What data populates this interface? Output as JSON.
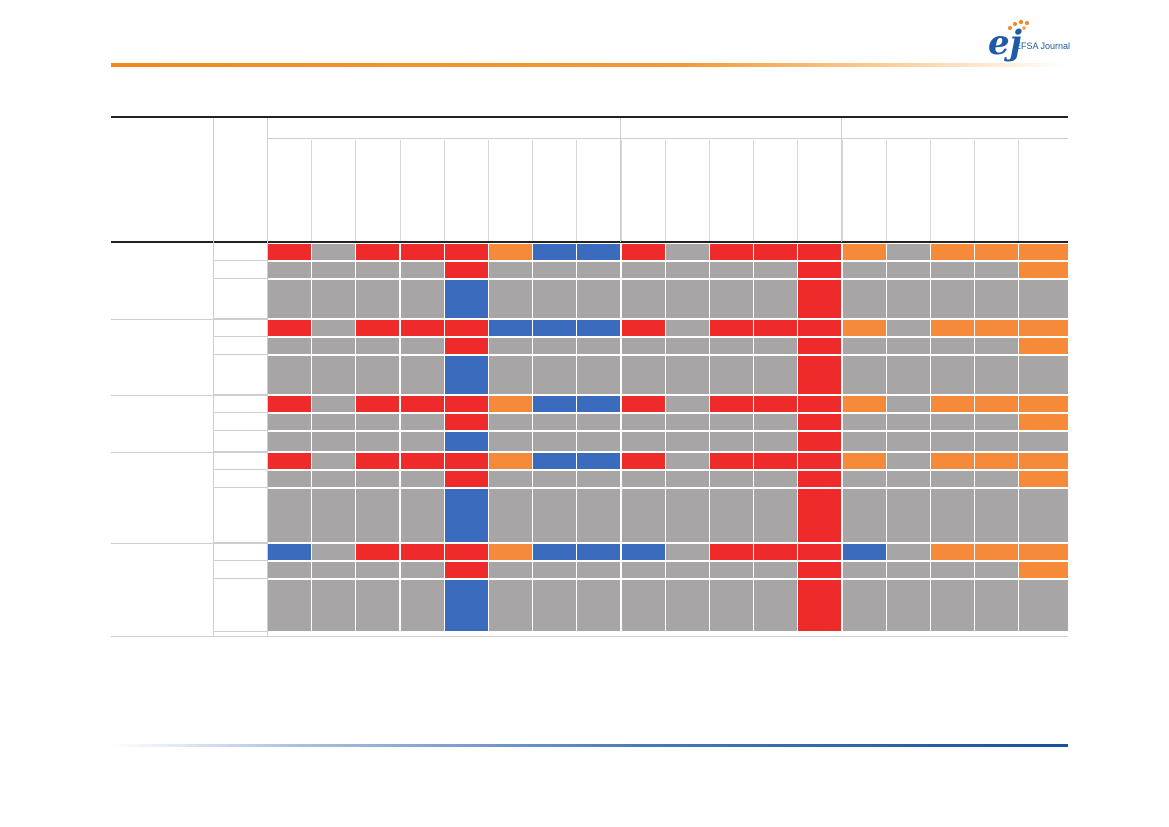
{
  "header": {
    "logo_mark": "ej",
    "logo_text": "EFSA Journal"
  },
  "colors": {
    "red": "#ee2a2a",
    "grey": "#a7a5a6",
    "blue": "#3a6bbd",
    "orange": "#f58a3a",
    "accent_orange": "#f18a1e",
    "accent_blue": "#1a4f9c"
  },
  "table": {
    "column_groups": 3,
    "columns": 18,
    "row_groups": [
      {
        "rows": [
          [
            "R",
            "G",
            "R",
            "R",
            "R",
            "O",
            "B",
            "B",
            "R",
            "G",
            "R",
            "R",
            "R",
            "O",
            "G",
            "O",
            "O",
            "O"
          ],
          [
            "G",
            "G",
            "G",
            "G",
            "R",
            "G",
            "G",
            "G",
            "G",
            "G",
            "G",
            "G",
            "R",
            "G",
            "G",
            "G",
            "G",
            "O"
          ],
          [
            "G",
            "G",
            "G",
            "G",
            "B",
            "G",
            "G",
            "G",
            "G",
            "G",
            "G",
            "G",
            "R",
            "G",
            "G",
            "G",
            "G",
            "G"
          ]
        ]
      },
      {
        "rows": [
          [
            "R",
            "G",
            "R",
            "R",
            "R",
            "B",
            "B",
            "B",
            "R",
            "G",
            "R",
            "R",
            "R",
            "O",
            "G",
            "O",
            "O",
            "O"
          ],
          [
            "G",
            "G",
            "G",
            "G",
            "R",
            "G",
            "G",
            "G",
            "G",
            "G",
            "G",
            "G",
            "R",
            "G",
            "G",
            "G",
            "G",
            "O"
          ],
          [
            "G",
            "G",
            "G",
            "G",
            "B",
            "G",
            "G",
            "G",
            "G",
            "G",
            "G",
            "G",
            "R",
            "G",
            "G",
            "G",
            "G",
            "G"
          ]
        ]
      },
      {
        "rows": [
          [
            "R",
            "G",
            "R",
            "R",
            "R",
            "O",
            "B",
            "B",
            "R",
            "G",
            "R",
            "R",
            "R",
            "O",
            "G",
            "O",
            "O",
            "O"
          ],
          [
            "G",
            "G",
            "G",
            "G",
            "R",
            "G",
            "G",
            "G",
            "G",
            "G",
            "G",
            "G",
            "R",
            "G",
            "G",
            "G",
            "G",
            "O"
          ],
          [
            "G",
            "G",
            "G",
            "G",
            "B",
            "G",
            "G",
            "G",
            "G",
            "G",
            "G",
            "G",
            "R",
            "G",
            "G",
            "G",
            "G",
            "G"
          ]
        ]
      },
      {
        "rows": [
          [
            "R",
            "G",
            "R",
            "R",
            "R",
            "O",
            "B",
            "B",
            "R",
            "G",
            "R",
            "R",
            "R",
            "O",
            "G",
            "O",
            "O",
            "O"
          ],
          [
            "G",
            "G",
            "G",
            "G",
            "R",
            "G",
            "G",
            "G",
            "G",
            "G",
            "G",
            "G",
            "R",
            "G",
            "G",
            "G",
            "G",
            "O"
          ],
          [
            "G",
            "G",
            "G",
            "G",
            "B",
            "G",
            "G",
            "G",
            "G",
            "G",
            "G",
            "G",
            "R",
            "G",
            "G",
            "G",
            "G",
            "G"
          ]
        ]
      },
      {
        "rows": [
          [
            "B",
            "G",
            "R",
            "R",
            "R",
            "O",
            "B",
            "B",
            "B",
            "G",
            "R",
            "R",
            "R",
            "B",
            "G",
            "O",
            "O",
            "O"
          ],
          [
            "G",
            "G",
            "G",
            "G",
            "R",
            "G",
            "G",
            "G",
            "G",
            "G",
            "G",
            "G",
            "R",
            "G",
            "G",
            "G",
            "G",
            "O"
          ],
          [
            "G",
            "G",
            "G",
            "G",
            "B",
            "G",
            "G",
            "G",
            "G",
            "G",
            "G",
            "G",
            "R",
            "G",
            "G",
            "G",
            "G",
            "G"
          ]
        ]
      }
    ]
  }
}
